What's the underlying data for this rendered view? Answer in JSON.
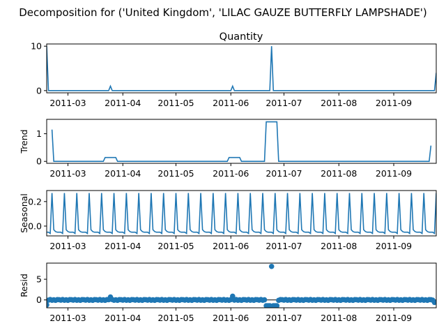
{
  "figure": {
    "suptitle": "Decomposition for ('United Kingdom', 'LILAC GAUZE BUTTERFLY LAMPSHADE')",
    "line_color": "#1f77b4"
  },
  "chart_data": [
    {
      "type": "line",
      "title": "Quantity",
      "ylabel": "",
      "x_range": [
        "2011-02-17",
        "2011-09-25"
      ],
      "ylim": [
        -0.5,
        10.5
      ],
      "yticks": [
        0,
        10
      ],
      "xticks": [
        "2011-03",
        "2011-04",
        "2011-05",
        "2011-06",
        "2011-07",
        "2011-08",
        "2011-09"
      ],
      "points": [
        [
          "2011-02-17",
          10
        ],
        [
          "2011-02-18",
          0
        ],
        [
          "2011-03-24",
          0
        ],
        [
          "2011-03-25",
          1
        ],
        [
          "2011-03-26",
          0
        ],
        [
          "2011-06-01",
          0
        ],
        [
          "2011-06-02",
          1
        ],
        [
          "2011-06-03",
          0
        ],
        [
          "2011-06-23",
          0
        ],
        [
          "2011-06-24",
          10
        ],
        [
          "2011-06-25",
          0
        ],
        [
          "2011-09-24",
          0
        ],
        [
          "2011-09-25",
          4
        ]
      ]
    },
    {
      "type": "line",
      "title": "",
      "ylabel": "Trend",
      "x_range": [
        "2011-02-17",
        "2011-09-25"
      ],
      "ylim": [
        -0.07,
        1.52
      ],
      "yticks": [
        0,
        1
      ],
      "xticks": [
        "2011-03",
        "2011-04",
        "2011-05",
        "2011-06",
        "2011-07",
        "2011-08",
        "2011-09"
      ],
      "points": [
        [
          "2011-02-20",
          1.15
        ],
        [
          "2011-02-21",
          0
        ],
        [
          "2011-03-21",
          0
        ],
        [
          "2011-03-22",
          0.14
        ],
        [
          "2011-03-28",
          0.14
        ],
        [
          "2011-03-29",
          0
        ],
        [
          "2011-05-30",
          0
        ],
        [
          "2011-05-31",
          0.14
        ],
        [
          "2011-06-06",
          0.14
        ],
        [
          "2011-06-07",
          0
        ],
        [
          "2011-06-20",
          0
        ],
        [
          "2011-06-21",
          1.43
        ],
        [
          "2011-06-27",
          1.43
        ],
        [
          "2011-06-28",
          0
        ],
        [
          "2011-09-21",
          0
        ],
        [
          "2011-09-22",
          0.57
        ]
      ]
    },
    {
      "type": "line",
      "title": "",
      "ylabel": "Seasonal",
      "x_range": [
        "2011-02-17",
        "2011-09-25"
      ],
      "ylim": [
        -0.08,
        0.29
      ],
      "yticks": [
        0.0,
        0.2
      ],
      "xticks": [
        "2011-03",
        "2011-04",
        "2011-05",
        "2011-06",
        "2011-07",
        "2011-08",
        "2011-09"
      ],
      "period_days": 7,
      "first_peak": "2011-02-20",
      "weekly_pattern": [
        0.27,
        -0.03,
        -0.045,
        -0.05,
        -0.05,
        -0.05,
        -0.06
      ]
    },
    {
      "type": "scatter",
      "title": "",
      "ylabel": "Resid",
      "x_range": [
        "2011-02-17",
        "2011-09-25"
      ],
      "ylim": [
        -1.9,
        8.9
      ],
      "yticks": [
        0,
        5
      ],
      "xticks": [
        "2011-03",
        "2011-04",
        "2011-05",
        "2011-06",
        "2011-07",
        "2011-08",
        "2011-09"
      ],
      "x_start": "2011-02-17",
      "x_end": "2011-09-24",
      "default_value": 0.0,
      "special": {
        "2011-02-17": -1.2,
        "2011-03-25": 0.7,
        "2011-06-02": 0.9,
        "2011-06-21": -1.4,
        "2011-06-22": -1.4,
        "2011-06-23": -1.4,
        "2011-06-24": 8.1,
        "2011-06-25": -1.4,
        "2011-06-26": -1.4,
        "2011-06-27": -1.4,
        "2011-09-24": -0.6
      },
      "noise": [
        0.05,
        -0.05,
        0.1,
        -0.08,
        0.03,
        -0.1,
        0.08
      ]
    }
  ]
}
